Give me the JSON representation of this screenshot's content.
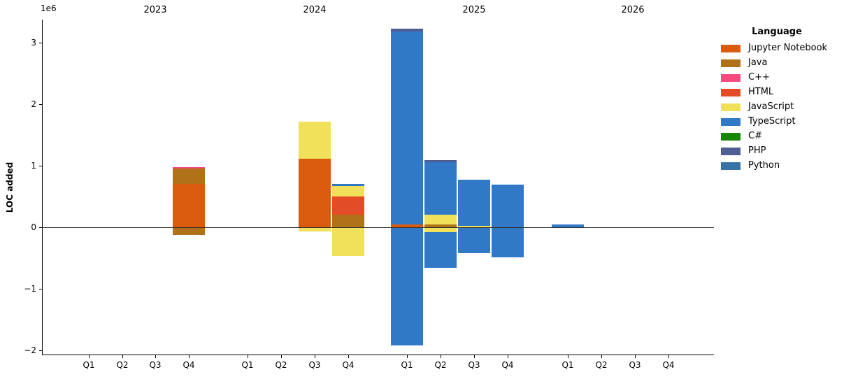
{
  "chart_data": {
    "type": "bar",
    "stacked": true,
    "ylabel": "LOC added",
    "y_offset_label": "1e6",
    "grid": false,
    "ylim": [
      -2070000,
      3380000
    ],
    "y_ticks": [
      {
        "label": "3",
        "value": 3000000
      },
      {
        "label": "2",
        "value": 2000000
      },
      {
        "label": "1",
        "value": 1000000
      },
      {
        "label": "0",
        "value": 0
      },
      {
        "label": "−1",
        "value": -1000000
      },
      {
        "label": "−2",
        "value": -2000000
      }
    ],
    "years": [
      "2023",
      "2024",
      "2025",
      "2026"
    ],
    "quarters": [
      "Q1",
      "Q2",
      "Q3",
      "Q4"
    ],
    "legend": {
      "title": "Language",
      "position": "upper right outside",
      "entries": [
        {
          "label": "Jupyter Notebook",
          "color": "#DA5B0B"
        },
        {
          "label": "Java",
          "color": "#B07219"
        },
        {
          "label": "C++",
          "color": "#F34B7D"
        },
        {
          "label": "HTML",
          "color": "#E34C26"
        },
        {
          "label": "JavaScript",
          "color": "#F1E05A"
        },
        {
          "label": "TypeScript",
          "color": "#3178C6"
        },
        {
          "label": "C#",
          "color": "#178600"
        },
        {
          "label": "PHP",
          "color": "#4F5D95"
        },
        {
          "label": "Python",
          "color": "#3572A5"
        }
      ]
    },
    "bars": [
      {
        "year": "2023",
        "quarter": "Q4",
        "segments": [
          {
            "language": "Jupyter Notebook",
            "value": 710000
          },
          {
            "language": "Java",
            "value": 240000
          },
          {
            "language": "C++",
            "value": 30000
          },
          {
            "language": "Java",
            "value": -120000
          }
        ]
      },
      {
        "year": "2024",
        "quarter": "Q3",
        "segments": [
          {
            "language": "Jupyter Notebook",
            "value": 1110000
          },
          {
            "language": "JavaScript",
            "value": 610000
          },
          {
            "language": "JavaScript",
            "value": -70000
          }
        ]
      },
      {
        "year": "2024",
        "quarter": "Q4",
        "segments": [
          {
            "language": "Java",
            "value": 210000
          },
          {
            "language": "HTML",
            "value": 290000
          },
          {
            "language": "JavaScript",
            "value": 170000
          },
          {
            "language": "TypeScript",
            "value": 30000
          },
          {
            "language": "JavaScript",
            "value": -470000
          }
        ]
      },
      {
        "year": "2025",
        "quarter": "Q1",
        "segments": [
          {
            "language": "Jupyter Notebook",
            "value": 40000
          },
          {
            "language": "TypeScript",
            "value": 3140000
          },
          {
            "language": "PHP",
            "value": 50000
          },
          {
            "language": "TypeScript",
            "value": -1920000
          }
        ]
      },
      {
        "year": "2025",
        "quarter": "Q2",
        "segments": [
          {
            "language": "Java",
            "value": 40000
          },
          {
            "language": "JavaScript",
            "value": 170000
          },
          {
            "language": "TypeScript",
            "value": 850000
          },
          {
            "language": "PHP",
            "value": 30000
          },
          {
            "language": "JavaScript",
            "value": -80000
          },
          {
            "language": "TypeScript",
            "value": -580000
          }
        ]
      },
      {
        "year": "2025",
        "quarter": "Q3",
        "segments": [
          {
            "language": "JavaScript",
            "value": 20000
          },
          {
            "language": "TypeScript",
            "value": 750000
          },
          {
            "language": "TypeScript",
            "value": -420000
          }
        ]
      },
      {
        "year": "2025",
        "quarter": "Q4",
        "segments": [
          {
            "language": "TypeScript",
            "value": 690000
          },
          {
            "language": "TypeScript",
            "value": -490000
          }
        ]
      },
      {
        "year": "2026",
        "quarter": "Q1",
        "segments": [
          {
            "language": "TypeScript",
            "value": 40000
          }
        ]
      }
    ]
  }
}
